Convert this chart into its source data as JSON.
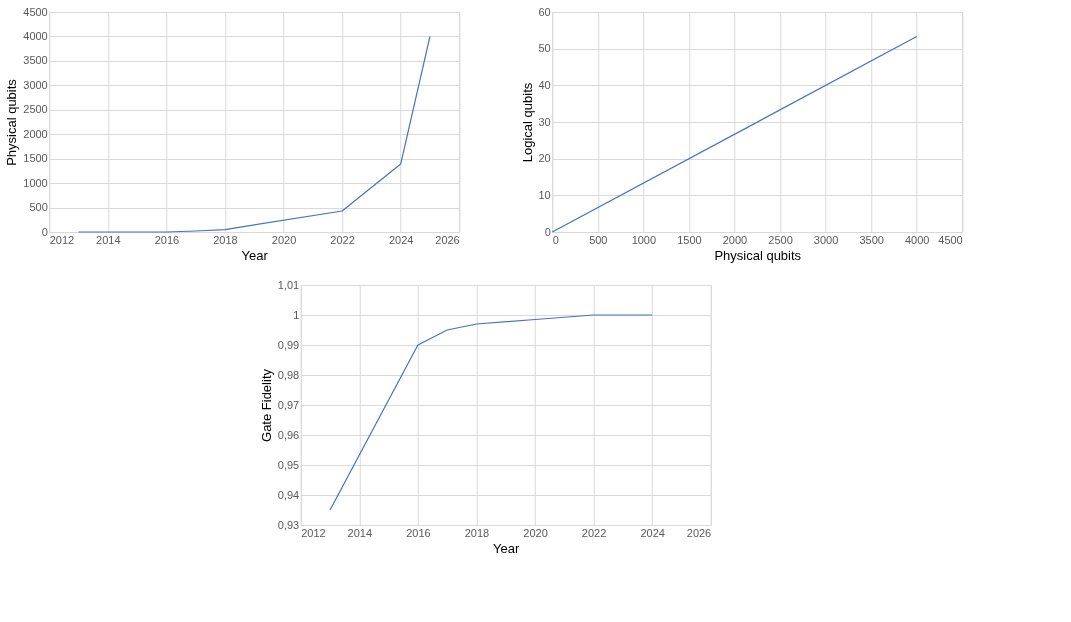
{
  "chart_data": [
    {
      "type": "line",
      "xlabel": "Year",
      "ylabel": "Physical qubits",
      "x": [
        2013,
        2016,
        2017,
        2018,
        2022,
        2024,
        2025
      ],
      "series": [
        {
          "color": "#4472c4",
          "values": [
            0,
            0,
            20,
            50,
            430,
            1390,
            4000
          ]
        }
      ],
      "xlim": [
        2012,
        2026
      ],
      "xticks": [
        2012,
        2014,
        2016,
        2018,
        2020,
        2022,
        2024,
        2026
      ],
      "ylim": [
        0,
        4500
      ],
      "yticks": [
        0,
        500,
        1000,
        1500,
        2000,
        2500,
        3000,
        3500,
        4000,
        4500
      ],
      "grid": true,
      "marker": "none",
      "line_style": "solid"
    },
    {
      "type": "line",
      "xlabel": "Physical qubits",
      "ylabel": "Logical qubits",
      "x": [
        0,
        4000
      ],
      "series": [
        {
          "color": "#4472c4",
          "values": [
            0,
            53.3
          ]
        }
      ],
      "xlim": [
        0,
        4500
      ],
      "xticks": [
        0,
        500,
        1000,
        1500,
        2000,
        2500,
        3000,
        3500,
        4000,
        4500
      ],
      "ylim": [
        0,
        60
      ],
      "yticks": [
        0,
        10,
        20,
        30,
        40,
        50,
        60
      ],
      "grid": true,
      "marker": "none",
      "line_style": "solid"
    },
    {
      "type": "line",
      "xlabel": "Year",
      "ylabel": "Gate Fidelity",
      "x": [
        2013,
        2016,
        2017,
        2018,
        2020,
        2022,
        2024
      ],
      "series": [
        {
          "color": "#4472c4",
          "values": [
            0.935,
            0.99,
            0.995,
            0.997,
            0.9985,
            1.0,
            1.0
          ]
        }
      ],
      "xlim": [
        2012,
        2026
      ],
      "xticks": [
        2012,
        2014,
        2016,
        2018,
        2020,
        2022,
        2024,
        2026
      ],
      "ylim": [
        0.93,
        1.01
      ],
      "yticks": [
        {
          "value": 0.93,
          "label": "0,93"
        },
        {
          "value": 0.94,
          "label": "0,94"
        },
        {
          "value": 0.95,
          "label": "0,95"
        },
        {
          "value": 0.96,
          "label": "0,96"
        },
        {
          "value": 0.97,
          "label": "0,97"
        },
        {
          "value": 0.98,
          "label": "0,98"
        },
        {
          "value": 0.99,
          "label": "0,99"
        },
        {
          "value": 1.0,
          "label": "1"
        },
        {
          "value": 1.01,
          "label": "1,01"
        }
      ],
      "grid": true,
      "marker": "none",
      "line_style": "solid"
    }
  ]
}
